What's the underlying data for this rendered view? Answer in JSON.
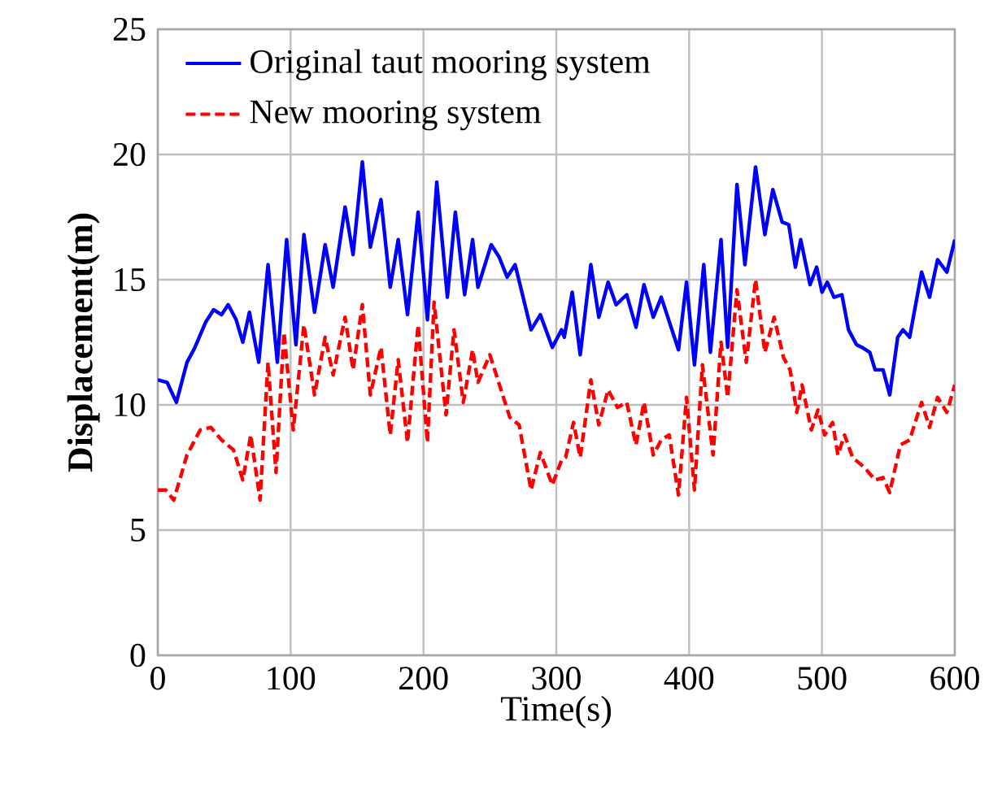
{
  "chart_data": {
    "type": "line",
    "xlabel": "Time(s)",
    "ylabel": "Displacement(m)",
    "xlim": [
      0,
      600
    ],
    "ylim": [
      0,
      25
    ],
    "xticks": [
      0,
      100,
      200,
      300,
      400,
      500,
      600
    ],
    "yticks": [
      0,
      5,
      10,
      15,
      20,
      25
    ],
    "grid": true,
    "legend": "top left",
    "series": [
      {
        "name": "Original taut mooring system",
        "color": "#0000ff",
        "line_style": "solid",
        "x": [
          0,
          7,
          14,
          22,
          28,
          36,
          42,
          48,
          53,
          59,
          64,
          69,
          76,
          83,
          90,
          97,
          104,
          110,
          118,
          126,
          132,
          141,
          147,
          154,
          160,
          168,
          175,
          181,
          188,
          196,
          203,
          210,
          218,
          224,
          231,
          237,
          241,
          251,
          257,
          263,
          269,
          281,
          288,
          297,
          304,
          306,
          312,
          318,
          326,
          332,
          339,
          345,
          353,
          360,
          366,
          373,
          379,
          392,
          398,
          404,
          411,
          416,
          424,
          429,
          436,
          442,
          450,
          457,
          463,
          470,
          475,
          480,
          484,
          491,
          496,
          500,
          504,
          509,
          515,
          520,
          526,
          530,
          536,
          540,
          546,
          551,
          557,
          561,
          566,
          575,
          581,
          587,
          594,
          600
        ],
        "values": [
          11.0,
          10.9,
          10.1,
          11.7,
          12.3,
          13.3,
          13.8,
          13.6,
          14.0,
          13.4,
          12.5,
          13.7,
          11.7,
          15.6,
          11.7,
          16.6,
          12.4,
          16.8,
          13.7,
          16.4,
          14.7,
          17.9,
          16.0,
          19.7,
          16.3,
          18.2,
          14.7,
          16.6,
          13.6,
          17.7,
          13.4,
          18.9,
          14.3,
          17.7,
          14.4,
          16.6,
          14.7,
          16.4,
          15.9,
          15.1,
          15.6,
          13.0,
          13.6,
          12.3,
          13.0,
          12.7,
          14.5,
          12.0,
          15.6,
          13.5,
          14.9,
          14.0,
          14.4,
          13.1,
          14.8,
          13.5,
          14.3,
          12.2,
          14.9,
          11.6,
          15.6,
          12.1,
          16.6,
          12.3,
          18.8,
          15.6,
          19.5,
          16.8,
          18.6,
          17.3,
          17.2,
          15.5,
          16.6,
          14.8,
          15.5,
          14.5,
          14.9,
          14.3,
          14.4,
          13.0,
          12.4,
          12.3,
          12.1,
          11.4,
          11.4,
          10.4,
          12.7,
          13.0,
          12.7,
          15.3,
          14.3,
          15.8,
          15.3,
          16.6
        ]
      },
      {
        "name": "New mooring system",
        "color": "#ff0000",
        "line_style": "dashed",
        "x": [
          0,
          6,
          12,
          22,
          32,
          40,
          48,
          57,
          64,
          70,
          77,
          83,
          89,
          95,
          102,
          110,
          118,
          126,
          132,
          141,
          147,
          154,
          160,
          168,
          175,
          181,
          188,
          196,
          203,
          208,
          217,
          223,
          230,
          237,
          241,
          250,
          265,
          272,
          281,
          288,
          297,
          304,
          307,
          313,
          318,
          326,
          332,
          339,
          346,
          353,
          360,
          366,
          373,
          379,
          385,
          392,
          398,
          404,
          410,
          418,
          424,
          429,
          436,
          443,
          450,
          457,
          464,
          471,
          476,
          481,
          485,
          492,
          497,
          502,
          508,
          512,
          517,
          523,
          532,
          540,
          546,
          551,
          559,
          566,
          575,
          581,
          587,
          594,
          600
        ],
        "values": [
          6.6,
          6.6,
          6.2,
          8.0,
          9.0,
          9.1,
          8.6,
          8.2,
          7.0,
          8.8,
          6.2,
          11.7,
          7.3,
          12.9,
          9.0,
          13.2,
          10.4,
          12.7,
          11.2,
          13.5,
          11.4,
          14.0,
          10.4,
          12.3,
          8.8,
          11.8,
          8.5,
          13.2,
          8.5,
          14.1,
          9.6,
          13.0,
          10.1,
          12.2,
          10.9,
          12.0,
          9.5,
          9.2,
          6.6,
          8.1,
          6.8,
          7.8,
          7.9,
          9.3,
          7.9,
          11.0,
          9.2,
          10.6,
          9.9,
          10.1,
          8.4,
          10.1,
          8.0,
          8.6,
          8.8,
          6.4,
          10.3,
          6.6,
          11.6,
          8.0,
          12.5,
          10.3,
          14.6,
          11.7,
          15.0,
          12.1,
          13.5,
          11.9,
          11.4,
          9.7,
          10.8,
          9.0,
          9.8,
          8.8,
          9.3,
          8.0,
          8.8,
          7.9,
          7.5,
          7.0,
          7.1,
          6.5,
          8.4,
          8.6,
          10.1,
          9.1,
          10.3,
          9.7,
          10.8
        ]
      }
    ]
  }
}
